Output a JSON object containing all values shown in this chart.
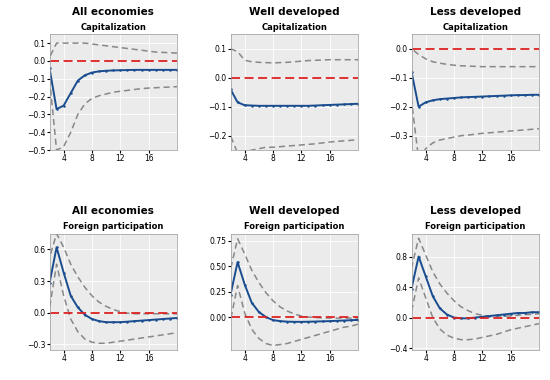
{
  "titles_row1": [
    "All economies",
    "Well developed",
    "Less developed"
  ],
  "titles_row2": [
    "All economies",
    "Well developed",
    "Less developed"
  ],
  "subtitle_row1": "Capitalization",
  "subtitle_row2": "Foreign participation",
  "cap_all_x": [
    1,
    2,
    3,
    4,
    5,
    6,
    7,
    8,
    9,
    10,
    11,
    12,
    13,
    14,
    15,
    16,
    17,
    18,
    19,
    20
  ],
  "cap_all_mean": [
    0.0,
    -0.04,
    -0.27,
    -0.25,
    -0.18,
    -0.11,
    -0.08,
    -0.065,
    -0.058,
    -0.055,
    -0.053,
    -0.052,
    -0.051,
    -0.05,
    -0.05,
    -0.05,
    -0.05,
    -0.05,
    -0.05,
    -0.05
  ],
  "cap_all_upper": [
    0.0,
    0.02,
    0.1,
    0.1,
    0.1,
    0.1,
    0.1,
    0.095,
    0.09,
    0.085,
    0.08,
    0.075,
    0.07,
    0.065,
    0.06,
    0.055,
    0.05,
    0.048,
    0.046,
    0.044
  ],
  "cap_all_lower": [
    0.0,
    -0.1,
    -0.5,
    -0.48,
    -0.4,
    -0.3,
    -0.24,
    -0.21,
    -0.195,
    -0.185,
    -0.175,
    -0.17,
    -0.165,
    -0.16,
    -0.155,
    -0.152,
    -0.15,
    -0.148,
    -0.146,
    -0.144
  ],
  "cap_all_ylim": [
    -0.5,
    0.15
  ],
  "cap_all_yticks": [
    -0.5,
    -0.4,
    -0.3,
    -0.2,
    -0.1,
    0.0,
    0.1
  ],
  "cap_well_x": [
    1,
    2,
    3,
    4,
    5,
    6,
    7,
    8,
    9,
    10,
    11,
    12,
    13,
    14,
    15,
    16,
    17,
    18,
    19,
    20
  ],
  "cap_well_mean": [
    0.0,
    -0.04,
    -0.085,
    -0.095,
    -0.096,
    -0.097,
    -0.097,
    -0.097,
    -0.097,
    -0.097,
    -0.097,
    -0.097,
    -0.097,
    -0.096,
    -0.095,
    -0.094,
    -0.093,
    -0.092,
    -0.091,
    -0.09
  ],
  "cap_well_upper": [
    0.0,
    0.1,
    0.09,
    0.06,
    0.055,
    0.053,
    0.052,
    0.051,
    0.052,
    0.053,
    0.055,
    0.057,
    0.059,
    0.06,
    0.061,
    0.062,
    0.062,
    0.062,
    0.062,
    0.062
  ],
  "cap_well_lower": [
    0.0,
    -0.2,
    -0.26,
    -0.255,
    -0.25,
    -0.245,
    -0.24,
    -0.24,
    -0.238,
    -0.236,
    -0.234,
    -0.232,
    -0.23,
    -0.228,
    -0.225,
    -0.222,
    -0.22,
    -0.218,
    -0.216,
    -0.214
  ],
  "cap_well_ylim": [
    -0.25,
    0.15
  ],
  "cap_well_yticks": [
    -0.2,
    -0.1,
    0.0,
    0.1
  ],
  "cap_less_x": [
    1,
    2,
    3,
    4,
    5,
    6,
    7,
    8,
    9,
    10,
    11,
    12,
    13,
    14,
    15,
    16,
    17,
    18,
    19,
    20
  ],
  "cap_less_mean": [
    0.0,
    -0.08,
    -0.2,
    -0.185,
    -0.178,
    -0.174,
    -0.172,
    -0.17,
    -0.168,
    -0.167,
    -0.166,
    -0.165,
    -0.164,
    -0.163,
    -0.162,
    -0.161,
    -0.16,
    -0.16,
    -0.159,
    -0.159
  ],
  "cap_less_upper": [
    0.0,
    0.0,
    -0.02,
    -0.035,
    -0.045,
    -0.05,
    -0.054,
    -0.057,
    -0.059,
    -0.06,
    -0.061,
    -0.062,
    -0.062,
    -0.062,
    -0.062,
    -0.062,
    -0.062,
    -0.062,
    -0.062,
    -0.062
  ],
  "cap_less_lower": [
    0.0,
    -0.18,
    -0.38,
    -0.345,
    -0.325,
    -0.315,
    -0.31,
    -0.305,
    -0.3,
    -0.298,
    -0.295,
    -0.292,
    -0.29,
    -0.288,
    -0.286,
    -0.284,
    -0.282,
    -0.28,
    -0.278,
    -0.276
  ],
  "cap_less_ylim": [
    -0.35,
    0.05
  ],
  "cap_less_yticks": [
    -0.3,
    -0.2,
    -0.1,
    0.0
  ],
  "fp_all_x": [
    1,
    2,
    3,
    4,
    5,
    6,
    7,
    8,
    9,
    10,
    11,
    12,
    13,
    14,
    15,
    16,
    17,
    18,
    19,
    20
  ],
  "fp_all_mean": [
    0.0,
    0.28,
    0.62,
    0.38,
    0.16,
    0.05,
    -0.02,
    -0.06,
    -0.08,
    -0.09,
    -0.09,
    -0.09,
    -0.085,
    -0.08,
    -0.075,
    -0.07,
    -0.065,
    -0.06,
    -0.055,
    -0.05
  ],
  "fp_all_upper": [
    0.0,
    0.52,
    0.75,
    0.62,
    0.46,
    0.34,
    0.24,
    0.16,
    0.1,
    0.06,
    0.03,
    0.01,
    -0.005,
    -0.01,
    -0.01,
    -0.01,
    -0.01,
    -0.01,
    -0.01,
    -0.01
  ],
  "fp_all_lower": [
    0.0,
    0.04,
    0.46,
    0.16,
    -0.06,
    -0.18,
    -0.25,
    -0.28,
    -0.29,
    -0.29,
    -0.28,
    -0.27,
    -0.26,
    -0.25,
    -0.24,
    -0.23,
    -0.22,
    -0.21,
    -0.2,
    -0.19
  ],
  "fp_all_ylim": [
    -0.35,
    0.75
  ],
  "fp_all_yticks": [
    -0.3,
    0.0,
    0.3,
    0.6
  ],
  "fp_well_x": [
    1,
    2,
    3,
    4,
    5,
    6,
    7,
    8,
    9,
    10,
    11,
    12,
    13,
    14,
    15,
    16,
    17,
    18,
    19,
    20
  ],
  "fp_well_mean": [
    0.0,
    0.22,
    0.54,
    0.32,
    0.14,
    0.05,
    0.0,
    -0.03,
    -0.04,
    -0.045,
    -0.047,
    -0.047,
    -0.046,
    -0.044,
    -0.042,
    -0.04,
    -0.037,
    -0.034,
    -0.031,
    -0.028
  ],
  "fp_well_upper": [
    0.0,
    0.47,
    0.77,
    0.62,
    0.46,
    0.34,
    0.24,
    0.16,
    0.1,
    0.06,
    0.03,
    0.01,
    0.0,
    -0.005,
    -0.008,
    -0.01,
    -0.01,
    -0.01,
    -0.01,
    -0.01
  ],
  "fp_well_lower": [
    0.0,
    -0.03,
    0.31,
    0.04,
    -0.12,
    -0.21,
    -0.26,
    -0.28,
    -0.27,
    -0.26,
    -0.24,
    -0.22,
    -0.2,
    -0.18,
    -0.16,
    -0.14,
    -0.12,
    -0.1,
    -0.09,
    -0.07
  ],
  "fp_well_ylim": [
    -0.32,
    0.82
  ],
  "fp_well_yticks": [
    0.0,
    0.25,
    0.5,
    0.75
  ],
  "fp_less_x": [
    1,
    2,
    3,
    4,
    5,
    6,
    7,
    8,
    9,
    10,
    11,
    12,
    13,
    14,
    15,
    16,
    17,
    18,
    19,
    20
  ],
  "fp_less_mean": [
    0.0,
    0.38,
    0.8,
    0.54,
    0.28,
    0.12,
    0.04,
    0.0,
    -0.01,
    -0.01,
    0.0,
    0.01,
    0.02,
    0.03,
    0.04,
    0.05,
    0.06,
    0.06,
    0.07,
    0.07
  ],
  "fp_less_upper": [
    0.0,
    0.65,
    1.04,
    0.82,
    0.6,
    0.44,
    0.32,
    0.22,
    0.14,
    0.09,
    0.05,
    0.03,
    0.02,
    0.02,
    0.02,
    0.02,
    0.03,
    0.04,
    0.04,
    0.05
  ],
  "fp_less_lower": [
    0.0,
    0.08,
    0.52,
    0.26,
    0.0,
    -0.15,
    -0.23,
    -0.27,
    -0.29,
    -0.29,
    -0.28,
    -0.26,
    -0.24,
    -0.22,
    -0.19,
    -0.16,
    -0.14,
    -0.12,
    -0.1,
    -0.08
  ],
  "fp_less_ylim": [
    -0.42,
    1.1
  ],
  "fp_less_yticks": [
    -0.4,
    0.0,
    0.4,
    0.8
  ],
  "mean_color": "#1a4d8f",
  "ci_color": "#888888",
  "zero_color": "#dd2222",
  "xticks": [
    4,
    8,
    12,
    16
  ],
  "bg_color": "#ebebeb"
}
